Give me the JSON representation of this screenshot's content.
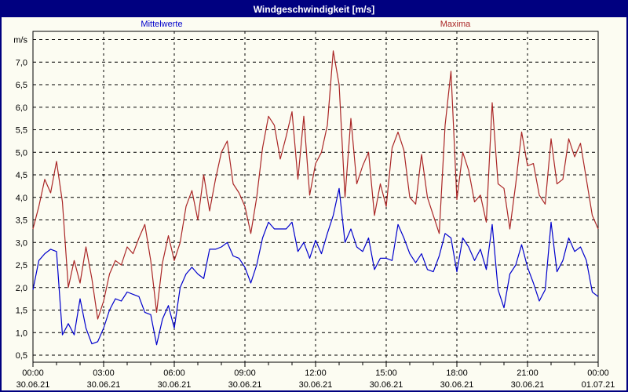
{
  "window": {
    "title": "Windgeschwindigkeit [m/s]"
  },
  "legend": {
    "mean_label": "Mittelwerte",
    "max_label": "Maxima"
  },
  "colors": {
    "titlebar_bg": "#000080",
    "titlebar_text": "#ffffff",
    "window_bg": "#fcfcf2",
    "border": "#000080",
    "grid": "#000000",
    "mean_line": "#0000cc",
    "max_line": "#aa2626"
  },
  "chart_data": {
    "type": "line",
    "title": "Windgeschwindigkeit [m/s]",
    "ylabel": "m/s",
    "unit_label": "m/s",
    "grid": "dashed",
    "legend_position": "top",
    "ylim": [
      0.5,
      7.5
    ],
    "y_tick_step": 0.5,
    "y_ticks": [
      {
        "label": "m/s",
        "value": 7.5
      },
      {
        "label": "7,0",
        "value": 7.0
      },
      {
        "label": "6,5",
        "value": 6.5
      },
      {
        "label": "6,0",
        "value": 6.0
      },
      {
        "label": "5,5",
        "value": 5.5
      },
      {
        "label": "5,0",
        "value": 5.0
      },
      {
        "label": "4,5",
        "value": 4.5
      },
      {
        "label": "4,0",
        "value": 4.0
      },
      {
        "label": "3,5",
        "value": 3.5
      },
      {
        "label": "3,0",
        "value": 3.0
      },
      {
        "label": "2,5",
        "value": 2.5
      },
      {
        "label": "2,0",
        "value": 2.0
      },
      {
        "label": "1,5",
        "value": 1.5
      },
      {
        "label": "1,0",
        "value": 1.0
      },
      {
        "label": "0,5",
        "value": 0.5
      }
    ],
    "x_start_hour": 0,
    "x_end_hour": 24,
    "x_step_hours": 0.25,
    "x_minor_tick_hours": 1,
    "x_ticks": [
      {
        "hour": 0,
        "time": "00:00",
        "date": "30.06.21"
      },
      {
        "hour": 3,
        "time": "03:00",
        "date": "30.06.21"
      },
      {
        "hour": 6,
        "time": "06:00",
        "date": "30.06.21"
      },
      {
        "hour": 9,
        "time": "09:00",
        "date": "30.06.21"
      },
      {
        "hour": 12,
        "time": "12:00",
        "date": "30.06.21"
      },
      {
        "hour": 15,
        "time": "15:00",
        "date": "30.06.21"
      },
      {
        "hour": 18,
        "time": "18:00",
        "date": "30.06.21"
      },
      {
        "hour": 21,
        "time": "21:00",
        "date": "30.06.21"
      },
      {
        "hour": 24,
        "time": "00:00",
        "date": "01.07.21"
      }
    ],
    "series": [
      {
        "name": "Mittelwerte",
        "color": "#0000cc",
        "values": [
          1.95,
          2.6,
          2.75,
          2.85,
          2.8,
          0.95,
          1.2,
          0.95,
          1.75,
          1.1,
          0.75,
          0.8,
          1.1,
          1.5,
          1.75,
          1.7,
          1.9,
          1.85,
          1.8,
          1.45,
          1.4,
          0.73,
          1.3,
          1.6,
          1.1,
          2.0,
          2.3,
          2.45,
          2.3,
          2.2,
          2.85,
          2.85,
          2.9,
          3.0,
          2.7,
          2.65,
          2.45,
          2.1,
          2.5,
          3.1,
          3.45,
          3.3,
          3.3,
          3.3,
          3.45,
          2.8,
          3.0,
          2.65,
          3.05,
          2.75,
          3.2,
          3.6,
          4.2,
          3.0,
          3.3,
          2.9,
          2.8,
          3.1,
          2.4,
          2.65,
          2.65,
          2.6,
          3.4,
          3.1,
          2.75,
          2.55,
          2.75,
          2.4,
          2.35,
          2.7,
          3.2,
          3.1,
          2.35,
          3.1,
          2.9,
          2.6,
          2.85,
          2.4,
          3.4,
          1.95,
          1.55,
          2.3,
          2.5,
          2.95,
          2.45,
          2.1,
          1.7,
          1.95,
          3.45,
          2.35,
          2.6,
          3.1,
          2.8,
          2.9,
          2.6,
          1.9,
          1.8
        ]
      },
      {
        "name": "Maxima",
        "color": "#aa2626",
        "values": [
          3.3,
          3.8,
          4.4,
          4.1,
          4.8,
          3.9,
          2.0,
          2.6,
          2.1,
          2.9,
          2.2,
          1.3,
          1.7,
          2.3,
          2.6,
          2.5,
          2.9,
          2.75,
          3.1,
          3.4,
          2.6,
          1.45,
          2.55,
          3.15,
          2.6,
          3.0,
          3.8,
          4.15,
          3.5,
          4.5,
          3.7,
          4.4,
          5.0,
          5.25,
          4.3,
          4.1,
          3.8,
          3.2,
          4.0,
          5.1,
          5.8,
          5.6,
          4.85,
          5.35,
          5.9,
          4.4,
          5.8,
          4.05,
          4.75,
          5.0,
          5.6,
          7.25,
          6.5,
          4.0,
          5.75,
          4.3,
          4.7,
          5.0,
          3.6,
          4.3,
          3.8,
          5.1,
          5.45,
          5.05,
          4.0,
          3.85,
          4.95,
          4.0,
          3.6,
          3.2,
          5.6,
          6.8,
          3.95,
          5.0,
          4.6,
          3.9,
          4.05,
          3.45,
          6.1,
          4.3,
          4.2,
          3.3,
          4.3,
          5.45,
          4.7,
          4.75,
          4.05,
          3.85,
          5.3,
          4.3,
          4.4,
          5.3,
          4.9,
          5.2,
          4.4,
          3.6,
          3.3
        ]
      }
    ]
  }
}
